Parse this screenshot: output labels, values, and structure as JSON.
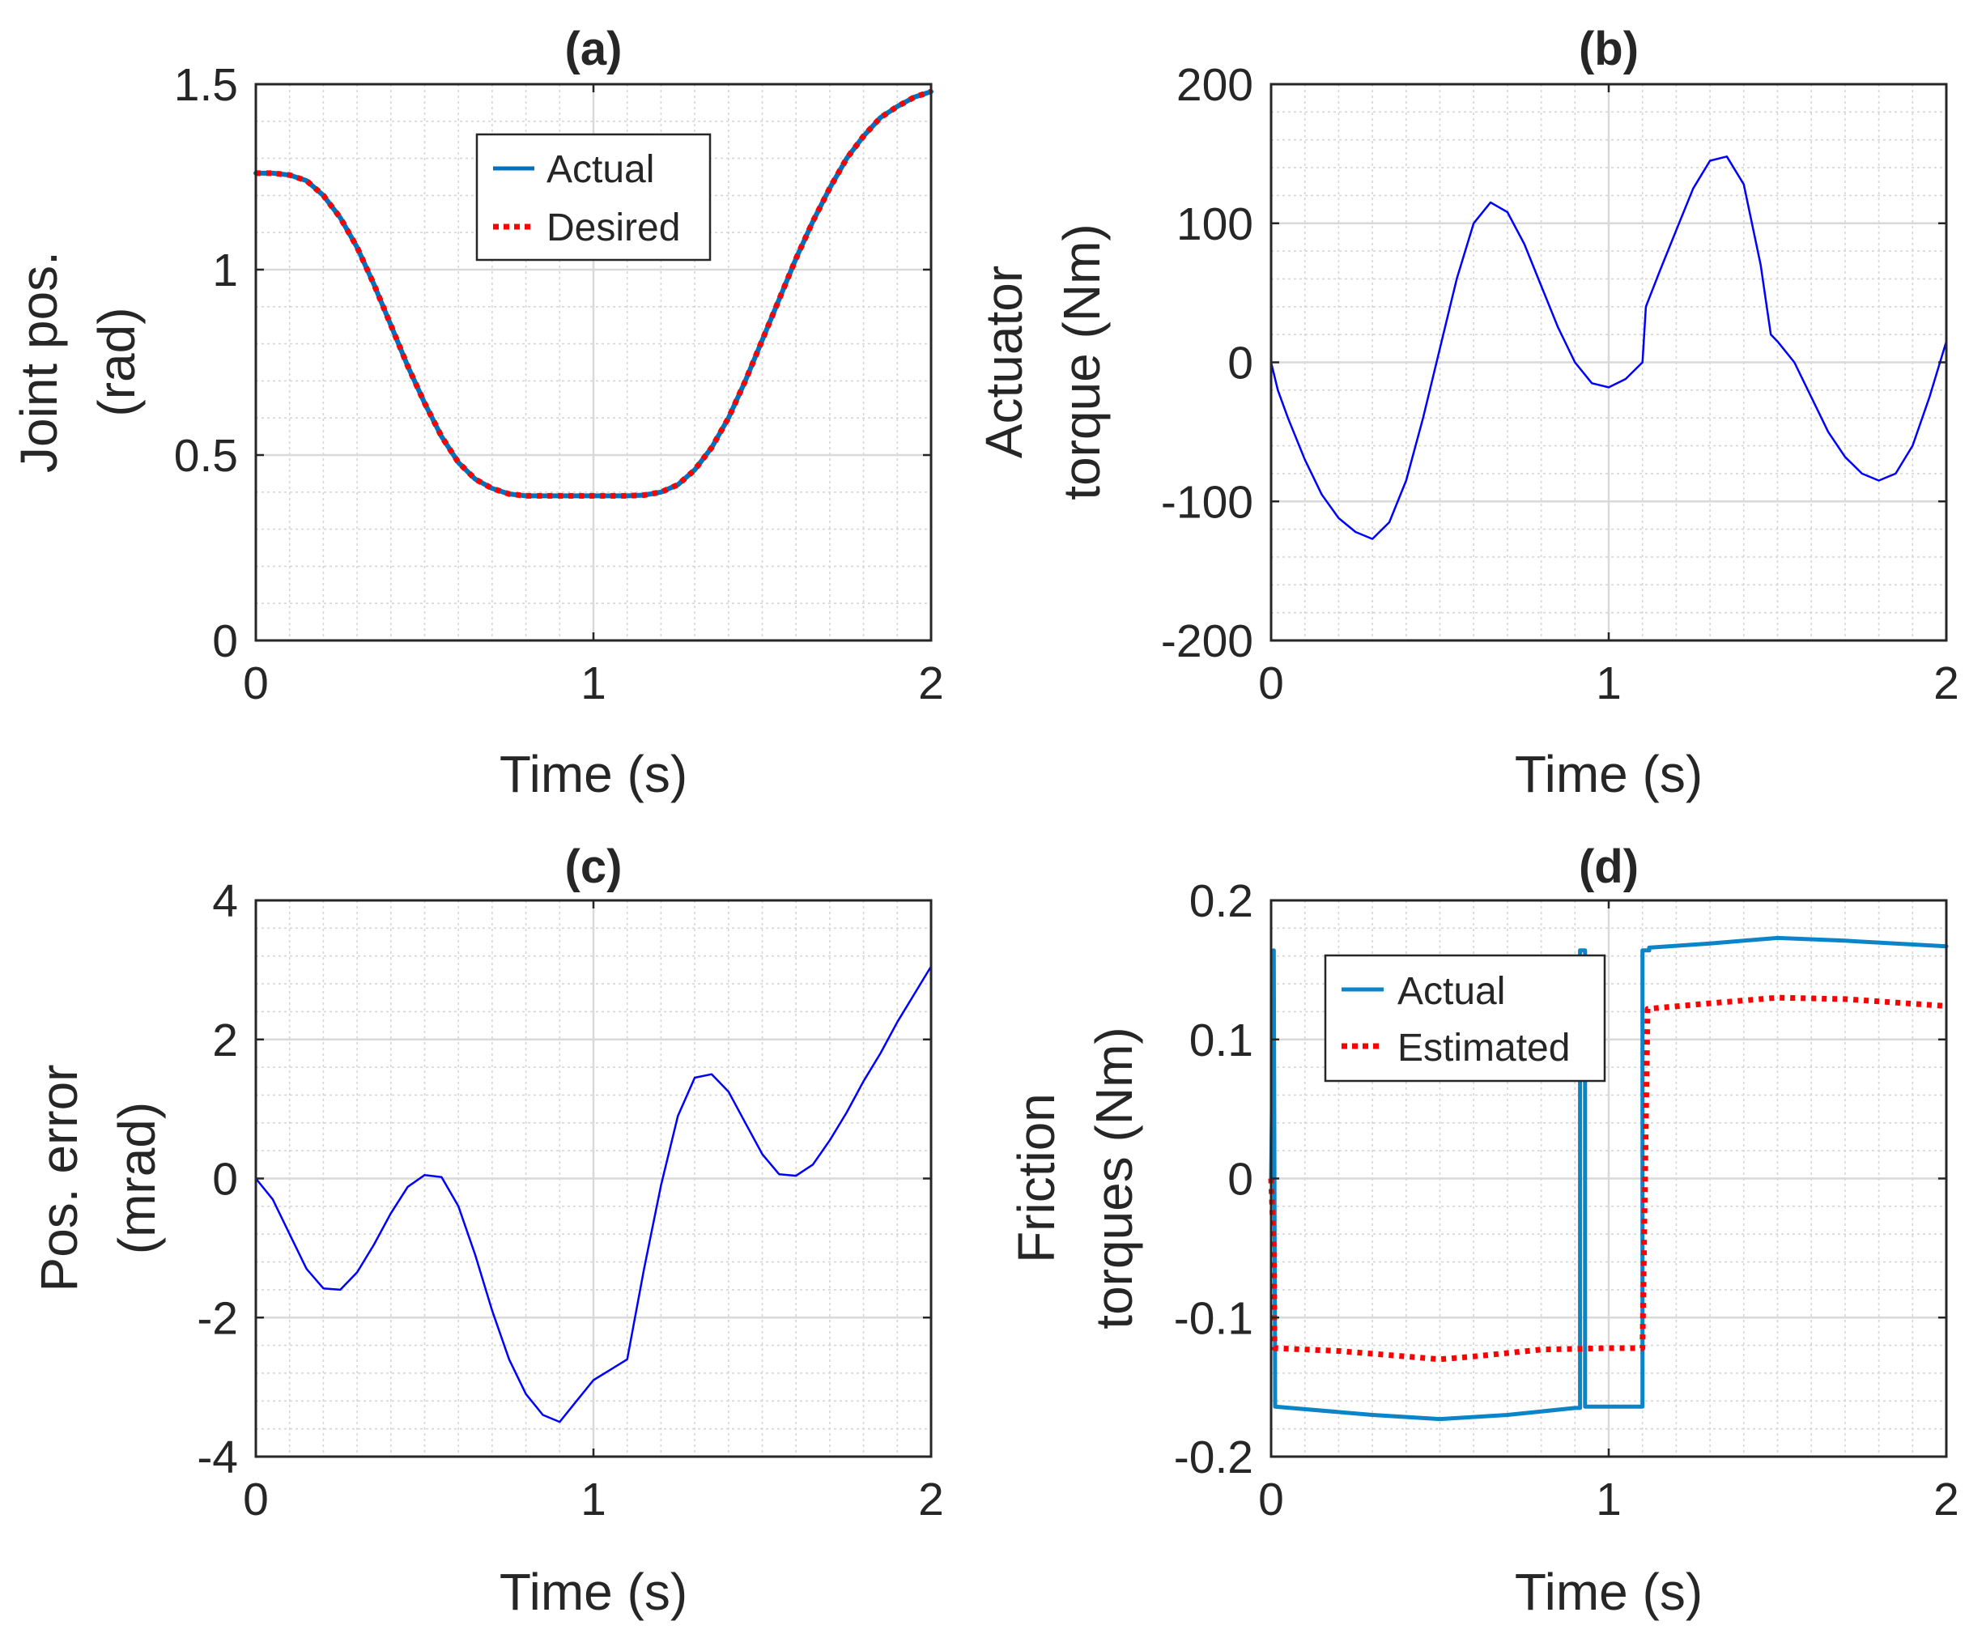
{
  "figure": {
    "description_labels": [
      "(a)",
      "(b)",
      "(c)",
      "(d)"
    ]
  },
  "colors": {
    "actual_lightblue": "#0072BD",
    "desired_red": "#FF0000",
    "blue": "#0000FF",
    "friction_actual": "#0B85C8"
  },
  "chart_data": [
    {
      "id": "a",
      "type": "line",
      "title": "(a)",
      "xlabel": "Time (s)",
      "ylabel_lines": [
        "Joint pos.",
        "(rad)"
      ],
      "xlim": [
        0,
        2
      ],
      "ylim": [
        0,
        1.5
      ],
      "xticks": [
        0,
        1,
        2
      ],
      "xtick_labels": [
        "0",
        "1",
        "2"
      ],
      "yticks": [
        0,
        0.5,
        1,
        1.5
      ],
      "ytick_labels": [
        "0",
        "0.5",
        "1",
        "1.5"
      ],
      "grid": true,
      "legend": {
        "placement": "top-center",
        "entries": [
          "Actual",
          "Desired"
        ]
      },
      "series": [
        {
          "name": "Actual",
          "color": "#0072BD",
          "style": "solid",
          "x": [
            0,
            0.05,
            0.1,
            0.15,
            0.2,
            0.25,
            0.3,
            0.35,
            0.4,
            0.45,
            0.5,
            0.55,
            0.6,
            0.65,
            0.7,
            0.75,
            0.8,
            0.85,
            0.9,
            0.95,
            1.0,
            1.05,
            1.1,
            1.15,
            1.2,
            1.25,
            1.3,
            1.35,
            1.4,
            1.45,
            1.5,
            1.55,
            1.6,
            1.65,
            1.7,
            1.75,
            1.8,
            1.85,
            1.9,
            1.95,
            2.0
          ],
          "y": [
            1.26,
            1.26,
            1.255,
            1.24,
            1.2,
            1.14,
            1.06,
            0.96,
            0.85,
            0.74,
            0.64,
            0.55,
            0.48,
            0.435,
            0.41,
            0.395,
            0.39,
            0.39,
            0.39,
            0.39,
            0.39,
            0.39,
            0.39,
            0.392,
            0.4,
            0.42,
            0.46,
            0.52,
            0.6,
            0.7,
            0.81,
            0.92,
            1.03,
            1.13,
            1.22,
            1.3,
            1.36,
            1.41,
            1.44,
            1.465,
            1.48
          ]
        },
        {
          "name": "Desired",
          "color": "#FF0000",
          "style": "dotted",
          "x": [
            0,
            0.05,
            0.1,
            0.15,
            0.2,
            0.25,
            0.3,
            0.35,
            0.4,
            0.45,
            0.5,
            0.55,
            0.6,
            0.65,
            0.7,
            0.75,
            0.8,
            0.85,
            0.9,
            0.95,
            1.0,
            1.05,
            1.1,
            1.15,
            1.2,
            1.25,
            1.3,
            1.35,
            1.4,
            1.45,
            1.5,
            1.55,
            1.6,
            1.65,
            1.7,
            1.75,
            1.8,
            1.85,
            1.9,
            1.95,
            2.0
          ],
          "y": [
            1.26,
            1.26,
            1.255,
            1.24,
            1.2,
            1.14,
            1.06,
            0.96,
            0.85,
            0.74,
            0.64,
            0.55,
            0.48,
            0.435,
            0.41,
            0.395,
            0.39,
            0.39,
            0.39,
            0.39,
            0.39,
            0.39,
            0.39,
            0.392,
            0.4,
            0.42,
            0.46,
            0.52,
            0.6,
            0.7,
            0.81,
            0.92,
            1.03,
            1.13,
            1.22,
            1.3,
            1.36,
            1.41,
            1.44,
            1.465,
            1.48
          ]
        }
      ]
    },
    {
      "id": "b",
      "type": "line",
      "title": "(b)",
      "xlabel": "Time (s)",
      "ylabel_lines": [
        "Actuator",
        "torque (Nm)"
      ],
      "xlim": [
        0,
        2
      ],
      "ylim": [
        -200,
        200
      ],
      "xticks": [
        0,
        1,
        2
      ],
      "xtick_labels": [
        "0",
        "1",
        "2"
      ],
      "yticks": [
        -200,
        -100,
        0,
        100,
        200
      ],
      "ytick_labels": [
        "-200",
        "-100",
        "0",
        "100",
        "200"
      ],
      "grid": true,
      "series": [
        {
          "name": "Actuator torque",
          "color": "#0000FF",
          "style": "solid",
          "x": [
            0,
            0.02,
            0.05,
            0.1,
            0.15,
            0.2,
            0.25,
            0.3,
            0.35,
            0.4,
            0.45,
            0.5,
            0.55,
            0.6,
            0.65,
            0.7,
            0.75,
            0.8,
            0.85,
            0.9,
            0.95,
            1.0,
            1.05,
            1.1,
            1.11,
            1.15,
            1.2,
            1.25,
            1.3,
            1.35,
            1.4,
            1.45,
            1.48,
            1.5,
            1.55,
            1.6,
            1.65,
            1.7,
            1.75,
            1.8,
            1.85,
            1.9,
            1.95,
            2.0
          ],
          "y": [
            0,
            -20,
            -40,
            -70,
            -95,
            -112,
            -122,
            -127,
            -115,
            -85,
            -40,
            10,
            60,
            100,
            115,
            108,
            85,
            55,
            25,
            0,
            -15,
            -18,
            -12,
            0,
            40,
            65,
            95,
            125,
            145,
            148,
            128,
            70,
            20,
            15,
            0,
            -25,
            -50,
            -68,
            -80,
            -85,
            -80,
            -60,
            -25,
            15
          ]
        }
      ]
    },
    {
      "id": "c",
      "type": "line",
      "title": "(c)",
      "xlabel": "Time (s)",
      "ylabel_lines": [
        "Pos. error",
        "(mrad)"
      ],
      "xlim": [
        0,
        2
      ],
      "ylim": [
        -4,
        4
      ],
      "xticks": [
        0,
        1,
        2
      ],
      "xtick_labels": [
        "0",
        "1",
        "2"
      ],
      "yticks": [
        -4,
        -2,
        0,
        2,
        4
      ],
      "ytick_labels": [
        "-4",
        "-2",
        "0",
        "2",
        "4"
      ],
      "grid": true,
      "series": [
        {
          "name": "Position error",
          "color": "#0000FF",
          "style": "solid",
          "x": [
            0,
            0.05,
            0.1,
            0.15,
            0.2,
            0.25,
            0.3,
            0.35,
            0.4,
            0.45,
            0.5,
            0.55,
            0.6,
            0.65,
            0.7,
            0.75,
            0.8,
            0.85,
            0.9,
            0.95,
            1.0,
            1.05,
            1.1,
            1.15,
            1.2,
            1.25,
            1.3,
            1.35,
            1.4,
            1.45,
            1.5,
            1.55,
            1.6,
            1.65,
            1.7,
            1.75,
            1.8,
            1.85,
            1.9,
            1.95,
            2.0
          ],
          "y": [
            0,
            -0.3,
            -0.8,
            -1.3,
            -1.58,
            -1.6,
            -1.35,
            -0.95,
            -0.5,
            -0.12,
            0.05,
            0.02,
            -0.4,
            -1.1,
            -1.9,
            -2.6,
            -3.1,
            -3.4,
            -3.5,
            -3.2,
            -2.9,
            -2.75,
            -2.6,
            -1.3,
            -0.1,
            0.9,
            1.45,
            1.5,
            1.25,
            0.8,
            0.35,
            0.06,
            0.04,
            0.2,
            0.55,
            0.95,
            1.4,
            1.8,
            2.25,
            2.65,
            3.05
          ]
        }
      ]
    },
    {
      "id": "d",
      "type": "line",
      "title": "(d)",
      "xlabel": "Time (s)",
      "ylabel_lines": [
        "Friction",
        "torques (Nm)"
      ],
      "xlim": [
        0,
        2
      ],
      "ylim": [
        -0.2,
        0.2
      ],
      "xticks": [
        0,
        1,
        2
      ],
      "xtick_labels": [
        "0",
        "1",
        "2"
      ],
      "yticks": [
        -0.2,
        -0.1,
        0,
        0.1,
        0.2
      ],
      "ytick_labels": [
        "-0.2",
        "-0.1",
        "0",
        "0.1",
        "0.2"
      ],
      "grid": true,
      "legend": {
        "placement": "top-left",
        "entries": [
          "Actual",
          "Estimated"
        ]
      },
      "series": [
        {
          "name": "Actual",
          "color": "#0B85C8",
          "style": "solid",
          "x": [
            0,
            0.008,
            0.012,
            0.3,
            0.5,
            0.7,
            0.9,
            0.915,
            0.915,
            0.93,
            0.93,
            0.945,
            0.945,
            1.1,
            1.1,
            1.12,
            1.12,
            1.3,
            1.5,
            1.7,
            2.0
          ],
          "y": [
            0,
            0.164,
            -0.164,
            -0.17,
            -0.173,
            -0.17,
            -0.165,
            -0.165,
            0.164,
            0.164,
            -0.164,
            -0.164,
            -0.164,
            -0.164,
            0.164,
            0.164,
            0.166,
            0.169,
            0.173,
            0.171,
            0.167
          ]
        },
        {
          "name": "Estimated",
          "color": "#FF0000",
          "style": "dotted",
          "x": [
            0,
            0.008,
            0.01,
            0.2,
            0.4,
            0.5,
            0.6,
            0.8,
            1.0,
            1.1,
            1.115,
            1.3,
            1.5,
            1.7,
            2.0
          ],
          "y": [
            0,
            -0.05,
            -0.122,
            -0.124,
            -0.128,
            -0.13,
            -0.128,
            -0.123,
            -0.122,
            -0.122,
            0.122,
            0.126,
            0.13,
            0.129,
            0.124
          ]
        }
      ]
    }
  ]
}
